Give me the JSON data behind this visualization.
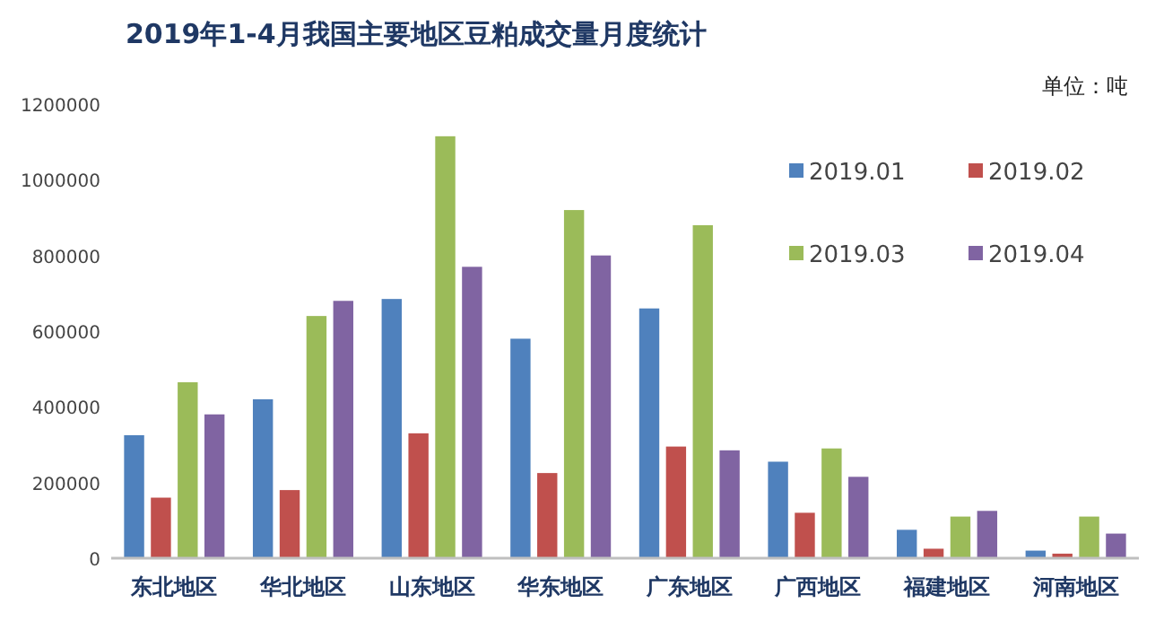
{
  "chart_data": {
    "type": "bar",
    "title": "2019年1-4月我国主要地区豆粕成交量月度统计",
    "annotations": [
      "单位：吨"
    ],
    "categories": [
      "东北地区",
      "华北地区",
      "山东地区",
      "华东地区",
      "广东地区",
      "广西地区",
      "福建地区",
      "河南地区"
    ],
    "series": [
      {
        "name": "2019.01",
        "color": "#4f81bd",
        "values": [
          325000,
          420000,
          685000,
          580000,
          660000,
          255000,
          75000,
          20000
        ]
      },
      {
        "name": "2019.02",
        "color": "#c0504d",
        "values": [
          160000,
          180000,
          330000,
          225000,
          295000,
          120000,
          25000,
          12000
        ]
      },
      {
        "name": "2019.03",
        "color": "#9bbb59",
        "values": [
          465000,
          640000,
          1115000,
          920000,
          880000,
          290000,
          110000,
          110000
        ]
      },
      {
        "name": "2019.04",
        "color": "#8064a2",
        "values": [
          380000,
          680000,
          770000,
          800000,
          285000,
          215000,
          125000,
          65000
        ]
      }
    ],
    "ylim": [
      0,
      1200000
    ],
    "yticks": [
      0,
      200000,
      400000,
      600000,
      800000,
      1000000,
      1200000
    ],
    "grid": false,
    "legend": "top right"
  }
}
